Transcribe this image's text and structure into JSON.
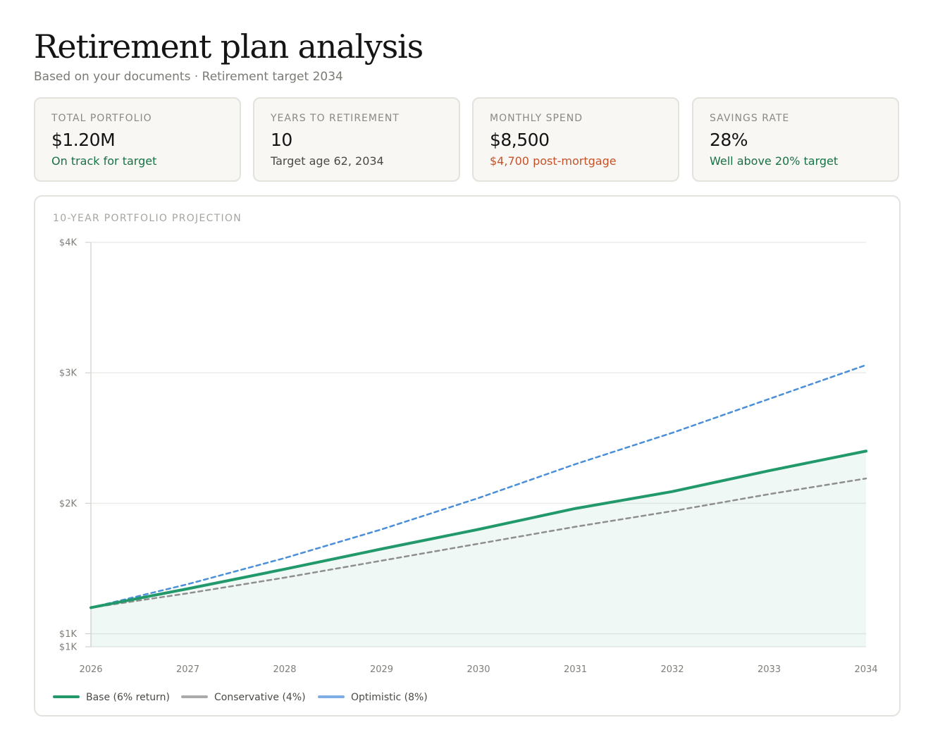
{
  "header": {
    "title": "Retirement plan analysis",
    "subtitle": "Based on your documents · Retirement target 2034"
  },
  "colors": {
    "positive": "#177245",
    "warning": "#c4532a",
    "base_line": "#22996b",
    "conservative_line": "#8f8f8f",
    "optimistic_line": "#4a8fd8"
  },
  "cards": [
    {
      "label": "TOTAL PORTFOLIO",
      "value": "$1.20M",
      "note": "On track for target",
      "note_tone": "positive"
    },
    {
      "label": "YEARS TO RETIREMENT",
      "value": "10",
      "note": "Target age 62, 2034",
      "note_tone": "neutral"
    },
    {
      "label": "MONTHLY SPEND",
      "value": "$8,500",
      "note": "$4,700 post-mortgage",
      "note_tone": "warning"
    },
    {
      "label": "SAVINGS RATE",
      "value": "28%",
      "note": "Well above 20% target",
      "note_tone": "positive"
    }
  ],
  "projection": {
    "label": "10-YEAR PORTFOLIO PROJECTION"
  },
  "chart_data": {
    "type": "line",
    "title": "10-YEAR PORTFOLIO PROJECTION",
    "xlabel": "",
    "ylabel": "",
    "categories": [
      "2026",
      "2027",
      "2028",
      "2029",
      "2030",
      "2031",
      "2032",
      "2033",
      "2034"
    ],
    "ylim": [
      900,
      4000
    ],
    "grid": true,
    "y_ticks": [
      {
        "value": 900,
        "label": "$1K"
      },
      {
        "value": 1000,
        "label": "$1K"
      },
      {
        "value": 2000,
        "label": "$2K"
      },
      {
        "value": 3000,
        "label": "$3K"
      },
      {
        "value": 4000,
        "label": "$4K"
      }
    ],
    "series": [
      {
        "name": "Base (6% return)",
        "style": "solid",
        "fill": true,
        "values": [
          1200,
          1345,
          1495,
          1650,
          1800,
          1960,
          2090,
          2250,
          2400
        ]
      },
      {
        "name": "Conservative (4%)",
        "style": "dashed",
        "fill": false,
        "values": [
          1200,
          1310,
          1430,
          1560,
          1690,
          1820,
          1940,
          2070,
          2190
        ]
      },
      {
        "name": "Optimistic (8%)",
        "style": "dashed",
        "fill": false,
        "values": [
          1200,
          1380,
          1580,
          1800,
          2040,
          2300,
          2540,
          2800,
          3060
        ]
      }
    ],
    "legend_position": "bottom-left"
  }
}
